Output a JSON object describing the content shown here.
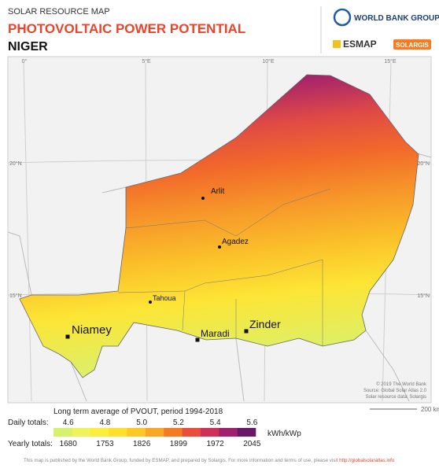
{
  "header": {
    "kicker": "SOLAR RESOURCE MAP",
    "title": "PHOTOVOLTAIC POWER POTENTIAL",
    "country": "NIGER"
  },
  "logos": {
    "worldbank": "WORLD BANK GROUP",
    "esmap": "ESMAP",
    "solargis": "SOLARGIS"
  },
  "map": {
    "longitudes": [
      "0°",
      "5°E",
      "10°E",
      "15°E"
    ],
    "latitudes": [
      "20°N",
      "15°N"
    ],
    "cities": [
      {
        "label": "Arlit"
      },
      {
        "label": "Agadez"
      },
      {
        "label": "Tahoua"
      },
      {
        "label": "Niamey"
      },
      {
        "label": "Maradi"
      },
      {
        "label": "Zinder"
      }
    ],
    "credit": [
      "© 2019 The World Bank",
      "Source: Global Solar Atlas 2.0",
      "Solar resource data: Solargis"
    ],
    "scale": "200 km"
  },
  "legend": {
    "title": "Long term average of PVOUT, period 1994-2018",
    "daily_label": "Daily totals:",
    "daily": [
      "4.6",
      "4.8",
      "5.0",
      "5.2",
      "5.4",
      "5.6"
    ],
    "yearly_label": "Yearly totals:",
    "yearly": [
      "1680",
      "1753",
      "1826",
      "1899",
      "1972",
      "2045"
    ],
    "unit": "kWh/kWp",
    "colors": [
      "#d6f26c",
      "#eef35a",
      "#fcef3c",
      "#fde02c",
      "#fcc825",
      "#f9a823",
      "#f47b21",
      "#ea4d39",
      "#cf2f5b",
      "#a01f6e",
      "#6a1767"
    ]
  },
  "footer": {
    "text": "This map is published by the World Bank Group, funded by ESMAP, and prepared by Solargis. For more information and terms of use, please visit",
    "link": "http://globalsolaratlas.info"
  }
}
